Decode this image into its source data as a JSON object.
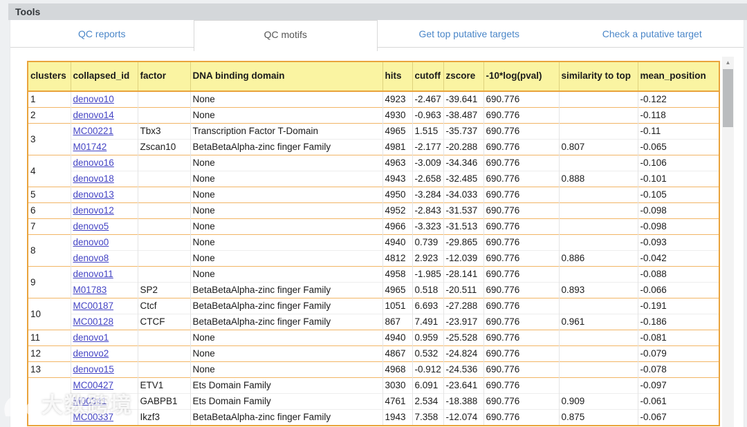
{
  "header": {
    "title": "Tools"
  },
  "tabs": [
    {
      "label": "QC reports",
      "active": false
    },
    {
      "label": "QC motifs",
      "active": true
    },
    {
      "label": "Get top putative targets",
      "active": false
    },
    {
      "label": "Check a putative target",
      "active": false
    }
  ],
  "table": {
    "columns": [
      "clusters",
      "collapsed_id",
      "factor",
      "DNA binding domain",
      "hits",
      "cutoff",
      "zscore",
      "-10*log(pval)",
      "similarity to top",
      "mean_position"
    ],
    "groups": [
      {
        "cluster": "1",
        "rows": [
          {
            "id": "denovo10",
            "factor": "",
            "domain": "None",
            "hits": "4923",
            "cutoff": "-2.467",
            "zscore": "-39.641",
            "logpval": "690.776",
            "similarity": "",
            "mean_position": "-0.122"
          }
        ]
      },
      {
        "cluster": "2",
        "rows": [
          {
            "id": "denovo14",
            "factor": "",
            "domain": "None",
            "hits": "4930",
            "cutoff": "-0.963",
            "zscore": "-38.487",
            "logpval": "690.776",
            "similarity": "",
            "mean_position": "-0.118"
          }
        ]
      },
      {
        "cluster": "3",
        "rows": [
          {
            "id": "MC00221",
            "factor": "Tbx3",
            "domain": "Transcription Factor T-Domain",
            "hits": "4965",
            "cutoff": "1.515",
            "zscore": "-35.737",
            "logpval": "690.776",
            "similarity": "",
            "mean_position": "-0.11"
          },
          {
            "id": "M01742",
            "factor": "Zscan10",
            "domain": "BetaBetaAlpha-zinc finger Family",
            "hits": "4981",
            "cutoff": "-2.177",
            "zscore": "-20.288",
            "logpval": "690.776",
            "similarity": "0.807",
            "mean_position": "-0.065"
          }
        ]
      },
      {
        "cluster": "4",
        "rows": [
          {
            "id": "denovo16",
            "factor": "",
            "domain": "None",
            "hits": "4963",
            "cutoff": "-3.009",
            "zscore": "-34.346",
            "logpval": "690.776",
            "similarity": "",
            "mean_position": "-0.106"
          },
          {
            "id": "denovo18",
            "factor": "",
            "domain": "None",
            "hits": "4943",
            "cutoff": "-2.658",
            "zscore": "-32.485",
            "logpval": "690.776",
            "similarity": "0.888",
            "mean_position": "-0.101"
          }
        ]
      },
      {
        "cluster": "5",
        "rows": [
          {
            "id": "denovo13",
            "factor": "",
            "domain": "None",
            "hits": "4950",
            "cutoff": "-3.284",
            "zscore": "-34.033",
            "logpval": "690.776",
            "similarity": "",
            "mean_position": "-0.105"
          }
        ]
      },
      {
        "cluster": "6",
        "rows": [
          {
            "id": "denovo12",
            "factor": "",
            "domain": "None",
            "hits": "4952",
            "cutoff": "-2.843",
            "zscore": "-31.537",
            "logpval": "690.776",
            "similarity": "",
            "mean_position": "-0.098"
          }
        ]
      },
      {
        "cluster": "7",
        "rows": [
          {
            "id": "denovo5",
            "factor": "",
            "domain": "None",
            "hits": "4966",
            "cutoff": "-3.323",
            "zscore": "-31.513",
            "logpval": "690.776",
            "similarity": "",
            "mean_position": "-0.098"
          }
        ]
      },
      {
        "cluster": "8",
        "rows": [
          {
            "id": "denovo0",
            "factor": "",
            "domain": "None",
            "hits": "4940",
            "cutoff": "0.739",
            "zscore": "-29.865",
            "logpval": "690.776",
            "similarity": "",
            "mean_position": "-0.093"
          },
          {
            "id": "denovo8",
            "factor": "",
            "domain": "None",
            "hits": "4812",
            "cutoff": "2.923",
            "zscore": "-12.039",
            "logpval": "690.776",
            "similarity": "0.886",
            "mean_position": "-0.042"
          }
        ]
      },
      {
        "cluster": "9",
        "rows": [
          {
            "id": "denovo11",
            "factor": "",
            "domain": "None",
            "hits": "4958",
            "cutoff": "-1.985",
            "zscore": "-28.141",
            "logpval": "690.776",
            "similarity": "",
            "mean_position": "-0.088"
          },
          {
            "id": "M01783",
            "factor": "SP2",
            "domain": "BetaBetaAlpha-zinc finger Family",
            "hits": "4965",
            "cutoff": "0.518",
            "zscore": "-20.511",
            "logpval": "690.776",
            "similarity": "0.893",
            "mean_position": "-0.066"
          }
        ]
      },
      {
        "cluster": "10",
        "rows": [
          {
            "id": "MC00187",
            "factor": "Ctcf",
            "domain": "BetaBetaAlpha-zinc finger Family",
            "hits": "1051",
            "cutoff": "6.693",
            "zscore": "-27.288",
            "logpval": "690.776",
            "similarity": "",
            "mean_position": "-0.191"
          },
          {
            "id": "MC00128",
            "factor": "CTCF",
            "domain": "BetaBetaAlpha-zinc finger Family",
            "hits": "867",
            "cutoff": "7.491",
            "zscore": "-23.917",
            "logpval": "690.776",
            "similarity": "0.961",
            "mean_position": "-0.186"
          }
        ]
      },
      {
        "cluster": "11",
        "rows": [
          {
            "id": "denovo1",
            "factor": "",
            "domain": "None",
            "hits": "4940",
            "cutoff": "0.959",
            "zscore": "-25.528",
            "logpval": "690.776",
            "similarity": "",
            "mean_position": "-0.081"
          }
        ]
      },
      {
        "cluster": "12",
        "rows": [
          {
            "id": "denovo2",
            "factor": "",
            "domain": "None",
            "hits": "4867",
            "cutoff": "0.532",
            "zscore": "-24.824",
            "logpval": "690.776",
            "similarity": "",
            "mean_position": "-0.079"
          }
        ]
      },
      {
        "cluster": "13",
        "rows": [
          {
            "id": "denovo15",
            "factor": "",
            "domain": "None",
            "hits": "4968",
            "cutoff": "-0.912",
            "zscore": "-24.536",
            "logpval": "690.776",
            "similarity": "",
            "mean_position": "-0.078"
          }
        ]
      },
      {
        "cluster": "",
        "rows": [
          {
            "id": "MC00427",
            "factor": "ETV1",
            "domain": "Ets Domain Family",
            "hits": "3030",
            "cutoff": "6.091",
            "zscore": "-23.641",
            "logpval": "690.776",
            "similarity": "",
            "mean_position": "-0.097"
          },
          {
            "id": "M00341",
            "factor": "GABPB1",
            "domain": "Ets Domain Family",
            "hits": "4761",
            "cutoff": "2.534",
            "zscore": "-18.388",
            "logpval": "690.776",
            "similarity": "0.909",
            "mean_position": "-0.061"
          },
          {
            "id": "MC00337",
            "factor": "Ikzf3",
            "domain": "BetaBetaAlpha-zinc finger Family",
            "hits": "1943",
            "cutoff": "7.358",
            "zscore": "-12.074",
            "logpval": "690.776",
            "similarity": "0.875",
            "mean_position": "-0.067"
          }
        ]
      }
    ]
  },
  "scrollbar": {
    "up_arrow": "▲"
  },
  "watermark": {
    "text": "大数跨境"
  },
  "colors": {
    "accent_orange": "#e9a33c",
    "header_yellow": "#faf4a2",
    "link_blue": "#4444c4",
    "tab_blue": "#4a86c8",
    "tools_bar_gray": "#d4d7da"
  }
}
